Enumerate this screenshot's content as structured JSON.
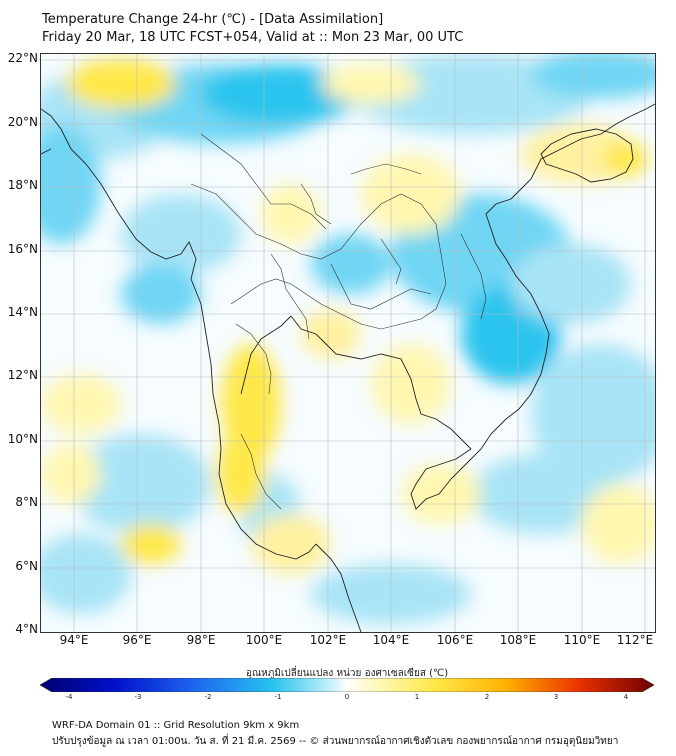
{
  "header": {
    "title": "Temperature Change 24-hr (℃) - [Data Assimilation]",
    "subtitle": "Friday 20 Mar, 18 UTC FCST+054, Valid at :: Mon 23 Mar, 00 UTC"
  },
  "map": {
    "lat_labels": [
      "22°N",
      "20°N",
      "18°N",
      "16°N",
      "14°N",
      "12°N",
      "10°N",
      "8°N",
      "6°N",
      "4°N"
    ],
    "lon_labels": [
      "94°E",
      "96°E",
      "98°E",
      "100°E",
      "102°E",
      "104°E",
      "106°E",
      "108°E",
      "110°E",
      "112°E"
    ],
    "field_colors": {
      "cool": "#29c4ee",
      "cool_light": "#a8e4f6",
      "neutral": "#ffffff",
      "warm_light": "#fff7b0",
      "warm": "#ffe84a"
    }
  },
  "colorbar": {
    "label": "อุณหภูมิเปลี่ยนแปลง หน่วย องศาเซลเซียส (℃)",
    "ticks": [
      "-4",
      "-3",
      "-2",
      "-1",
      "0",
      "1",
      "2",
      "3",
      "4"
    ]
  },
  "footer": {
    "line1": "WRF-DA Domain 01 :: Grid Resolution 9km x 9km",
    "line2": "ปรับปรุงข้อมูล ณ เวลา 01:00น. วัน ส. ที่ 21 มี.ค. 2569 -- © ส่วนพยากรณ์อากาศเชิงตัวเลข กองพยากรณ์อากาศ กรมอุตุนิยมวิทยา"
  }
}
